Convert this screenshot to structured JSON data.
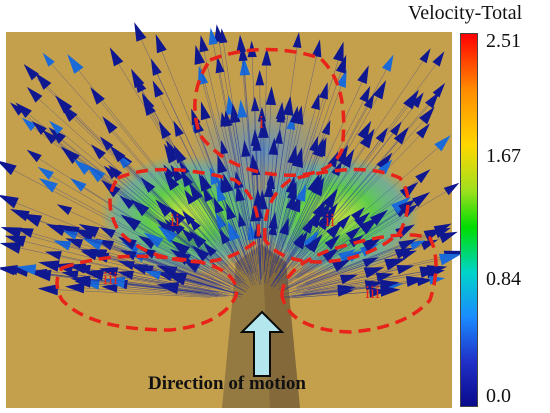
{
  "colorbar": {
    "title": "Velocity-Total",
    "ticks": [
      "2.51",
      "1.67",
      "0.84",
      "0.0"
    ],
    "colors": [
      "#ff0000",
      "#ff8c00",
      "#ffd700",
      "#a0e01e",
      "#00dc00",
      "#00d4c8",
      "#1a8cff",
      "#2030c8",
      "#0a0a8c"
    ]
  },
  "caption": "Direction of motion",
  "regions": {
    "i": "i",
    "ii_left": "ii",
    "ii_right": "ii",
    "iii_left": "iii",
    "iii_right": "iii"
  },
  "colors": {
    "background": "#c8a550",
    "region_outline": "#e8231a",
    "arrow_fill": "#b4e6ee"
  }
}
